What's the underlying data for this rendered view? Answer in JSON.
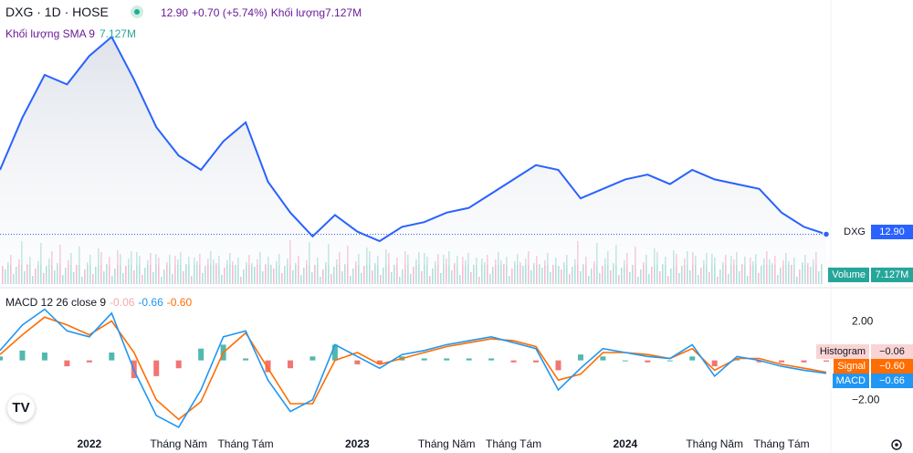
{
  "header": {
    "symbol": "DXG · 1D · HOSE",
    "last": "12.90",
    "change": "+0.70 (+5.74%)",
    "volume_label": "Khối lượng7.127M"
  },
  "volume_legend": {
    "label": "Khối lượng SMA 9",
    "value": "7.127M"
  },
  "macd_legend": {
    "label": "MACD 12 26 close 9",
    "histogram": "-0.06",
    "macd": "-0.66",
    "signal": "-0.60"
  },
  "tags": {
    "price": {
      "name": "DXG",
      "value": "12.90"
    },
    "volume": {
      "name": "Volume",
      "value": "7.127M"
    },
    "histogram": {
      "name": "Histogram",
      "value": "−0.06"
    },
    "signal": {
      "name": "Signal",
      "value": "−0.60"
    },
    "macd": {
      "name": "MACD",
      "value": "−0.66"
    }
  },
  "logo_text": "TV",
  "colors": {
    "price_line": "#2962ff",
    "area_fill": "#e8ebf0",
    "macd_line": "#2196f3",
    "signal_line": "#ff6d00",
    "hist_up": "#26a69a",
    "hist_down": "#ef5350",
    "vol_up": "#b2dfdb",
    "vol_down": "#f8bbd0"
  },
  "chart_data": {
    "type": "line",
    "x_ticks": [
      "2022",
      "Tháng Năm",
      "Tháng Tám",
      "2023",
      "Tháng Năm",
      "Tháng Tám",
      "2024",
      "Tháng Năm",
      "Tháng Tám"
    ],
    "x_tick_dates": [
      "2022-01",
      "2022-05",
      "2022-08",
      "2023-01",
      "2023-05",
      "2023-08",
      "2024-01",
      "2024-05",
      "2024-08"
    ],
    "x_range": [
      "2021-09",
      "2024-10"
    ],
    "y_range": [
      0,
      100
    ],
    "y_label_note": "price axis labels not shown",
    "grid": false,
    "price_series": {
      "name": "DXG",
      "x": [
        "2021-09",
        "2021-10",
        "2021-11",
        "2021-12",
        "2022-01",
        "2022-02",
        "2022-03",
        "2022-04",
        "2022-05",
        "2022-06",
        "2022-07",
        "2022-08",
        "2022-09",
        "2022-10",
        "2022-11",
        "2022-12",
        "2023-01",
        "2023-02",
        "2023-03",
        "2023-04",
        "2023-05",
        "2023-06",
        "2023-07",
        "2023-08",
        "2023-09",
        "2023-10",
        "2023-11",
        "2023-12",
        "2024-01",
        "2024-02",
        "2024-03",
        "2024-04",
        "2024-05",
        "2024-06",
        "2024-07",
        "2024-08",
        "2024-09",
        "2024-10"
      ],
      "y": [
        40,
        62,
        80,
        76,
        88,
        96,
        78,
        58,
        46,
        40,
        52,
        60,
        35,
        22,
        12,
        21,
        14,
        10,
        16,
        18,
        22,
        24,
        30,
        36,
        42,
        40,
        28,
        32,
        36,
        38,
        34,
        40,
        36,
        34,
        32,
        22,
        16,
        12.9
      ]
    },
    "volume_series": {
      "name": "Volume",
      "last": "7.127M"
    },
    "macd": {
      "y_ticks": [
        2.0,
        -2.0
      ],
      "y_range": [
        -3.5,
        3.0
      ],
      "x": [
        "2021-09",
        "2021-10",
        "2021-11",
        "2021-12",
        "2022-01",
        "2022-02",
        "2022-03",
        "2022-04",
        "2022-05",
        "2022-06",
        "2022-07",
        "2022-08",
        "2022-09",
        "2022-10",
        "2022-11",
        "2022-12",
        "2023-01",
        "2023-02",
        "2023-03",
        "2023-04",
        "2023-05",
        "2023-06",
        "2023-07",
        "2023-08",
        "2023-09",
        "2023-10",
        "2023-11",
        "2023-12",
        "2024-01",
        "2024-02",
        "2024-03",
        "2024-04",
        "2024-05",
        "2024-06",
        "2024-07",
        "2024-08",
        "2024-09",
        "2024-10"
      ],
      "macd_line": [
        0.5,
        1.8,
        2.6,
        1.5,
        1.2,
        2.4,
        -0.5,
        -2.8,
        -3.4,
        -1.5,
        1.2,
        1.5,
        -1.0,
        -2.6,
        -2.0,
        0.8,
        0.2,
        -0.4,
        0.3,
        0.5,
        0.8,
        1.0,
        1.2,
        0.9,
        0.6,
        -1.5,
        -0.4,
        0.6,
        0.4,
        0.2,
        0.1,
        0.8,
        -0.8,
        0.2,
        0.0,
        -0.3,
        -0.5,
        -0.66
      ],
      "signal_line": [
        0.3,
        1.3,
        2.2,
        1.8,
        1.3,
        2.0,
        0.4,
        -2.0,
        -3.0,
        -2.1,
        0.4,
        1.4,
        -0.4,
        -2.2,
        -2.2,
        0.0,
        0.4,
        -0.2,
        0.1,
        0.4,
        0.7,
        0.9,
        1.1,
        1.0,
        0.7,
        -1.0,
        -0.7,
        0.4,
        0.4,
        0.3,
        0.1,
        0.6,
        -0.5,
        0.1,
        0.1,
        -0.2,
        -0.4,
        -0.6
      ],
      "histogram": [
        0.2,
        0.5,
        0.4,
        -0.3,
        -0.1,
        0.4,
        -0.9,
        -0.8,
        -0.4,
        0.6,
        0.8,
        0.1,
        -0.6,
        -0.4,
        0.2,
        0.8,
        -0.2,
        -0.2,
        0.2,
        0.1,
        0.1,
        0.1,
        0.1,
        -0.1,
        -0.1,
        -0.5,
        0.3,
        0.2,
        0.0,
        -0.1,
        0.0,
        0.2,
        -0.3,
        0.1,
        -0.1,
        -0.1,
        -0.1,
        -0.06
      ]
    }
  }
}
